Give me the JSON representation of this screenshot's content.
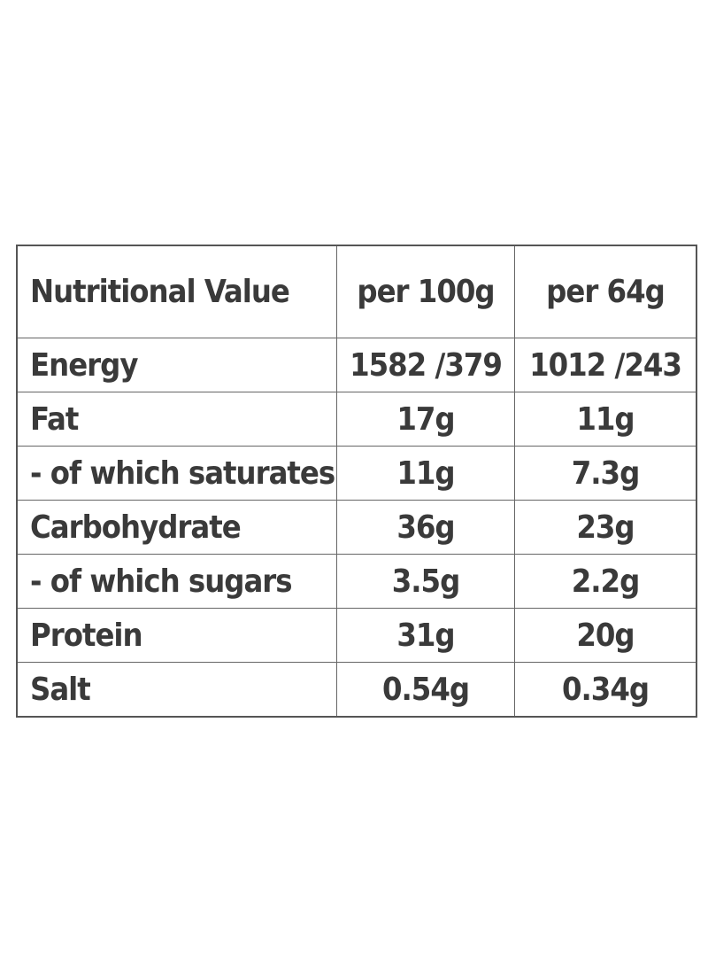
{
  "table": {
    "header": [
      "Nutritional Value",
      "per 100g",
      "per 64g"
    ],
    "rows": [
      [
        "Energy",
        "1582 /379",
        "1012 /243"
      ],
      [
        "Fat",
        "17g",
        "11g"
      ],
      [
        "- of which saturates",
        "11g",
        "7.3g"
      ],
      [
        "Carbohydrate",
        "36g",
        "23g"
      ],
      [
        "- of which sugars",
        "3.5g",
        "2.2g"
      ],
      [
        "Protein",
        "31g",
        "20g"
      ],
      [
        "Salt",
        "0.54g",
        "0.34g"
      ]
    ]
  }
}
